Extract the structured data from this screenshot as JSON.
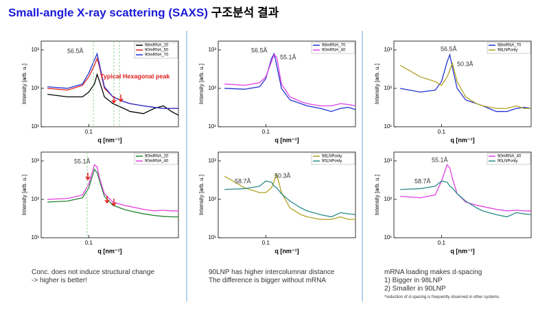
{
  "title": {
    "en": "Small-angle X-ray scattering (SAXS)",
    "ko": "구조분석 결과"
  },
  "chart_data": [
    {
      "type": "line",
      "log_x": true,
      "log_y": true,
      "xlabel": "q [nm⁻¹]",
      "ylabel": "Intensity [arb. u.]",
      "x": [
        0.05,
        0.07,
        0.09,
        0.1,
        0.11,
        0.115,
        0.12,
        0.13,
        0.15,
        0.18,
        0.2,
        0.25,
        0.3,
        0.35,
        0.4,
        0.45
      ],
      "xlim": [
        0.045,
        0.45
      ],
      "ylim": [
        10,
        1700
      ],
      "xticks": [
        0.1
      ],
      "yticks": [
        {
          "value": 10,
          "label": "10¹"
        },
        {
          "value": 100,
          "label": "10²"
        },
        {
          "value": 1000,
          "label": "10³"
        }
      ],
      "annotations": [
        "56.5Å",
        "Typical Hexagonal peak"
      ],
      "series": [
        {
          "name": "98mRNA_20",
          "color": "#000000",
          "values": [
            70,
            60,
            60,
            80,
            130,
            230,
            150,
            60,
            40,
            30,
            25,
            22,
            30,
            35,
            25,
            20
          ]
        },
        {
          "name": "90mRNA_50",
          "color": "#e02020",
          "values": [
            100,
            90,
            120,
            200,
            400,
            600,
            350,
            100,
            60,
            45,
            40,
            35,
            32,
            30,
            30,
            30
          ]
        },
        {
          "name": "90mRNA_70",
          "color": "#2030d0",
          "values": [
            110,
            100,
            130,
            250,
            550,
            800,
            400,
            110,
            60,
            45,
            40,
            35,
            32,
            30,
            30,
            30
          ]
        }
      ]
    },
    {
      "type": "line",
      "log_x": true,
      "log_y": true,
      "xlabel": "q [nm⁻¹]",
      "ylabel": "Intensity [arb. u.]",
      "x": [
        0.05,
        0.07,
        0.09,
        0.1,
        0.11,
        0.115,
        0.12,
        0.13,
        0.15,
        0.18,
        0.2,
        0.25,
        0.3,
        0.35,
        0.4,
        0.45
      ],
      "xlim": [
        0.045,
        0.45
      ],
      "ylim": [
        10,
        1700
      ],
      "xticks": [
        0.1
      ],
      "yticks": [
        {
          "value": 10,
          "label": "10¹"
        },
        {
          "value": 100,
          "label": "10²"
        },
        {
          "value": 1000,
          "label": "10³"
        }
      ],
      "annotations": [
        "56.5Å",
        "55.1Å"
      ],
      "series": [
        {
          "name": "98mRNA_70",
          "color": "#2030d0",
          "values": [
            100,
            95,
            110,
            180,
            600,
            800,
            400,
            100,
            50,
            40,
            35,
            30,
            25,
            30,
            32,
            28
          ]
        },
        {
          "name": "90mRNA_40",
          "color": "#e040e0",
          "values": [
            130,
            120,
            140,
            200,
            500,
            750,
            650,
            130,
            60,
            45,
            40,
            35,
            35,
            40,
            38,
            35
          ]
        }
      ]
    },
    {
      "type": "line",
      "log_x": true,
      "log_y": true,
      "xlabel": "q [nm⁻¹]",
      "ylabel": "Intensity [arb. u.]",
      "x": [
        0.05,
        0.07,
        0.09,
        0.1,
        0.11,
        0.115,
        0.12,
        0.13,
        0.15,
        0.18,
        0.2,
        0.25,
        0.3,
        0.35,
        0.4,
        0.45
      ],
      "xlim": [
        0.045,
        0.45
      ],
      "ylim": [
        10,
        1700
      ],
      "xticks": [
        0.1
      ],
      "yticks": [
        {
          "value": 10,
          "label": "10¹"
        },
        {
          "value": 100,
          "label": "10²"
        },
        {
          "value": 1000,
          "label": "10³"
        }
      ],
      "annotations": [
        "56.5Å",
        "50.3Å"
      ],
      "series": [
        {
          "name": "98mRNA_70",
          "color": "#2030d0",
          "values": [
            100,
            80,
            90,
            150,
            500,
            750,
            350,
            100,
            50,
            40,
            35,
            25,
            25,
            30,
            32,
            30
          ]
        },
        {
          "name": "98LNPonly",
          "color": "#b0a020",
          "values": [
            400,
            200,
            150,
            120,
            200,
            300,
            450,
            150,
            60,
            40,
            35,
            30,
            30,
            35,
            30,
            30
          ]
        }
      ]
    },
    {
      "type": "line",
      "log_x": true,
      "log_y": true,
      "xlabel": "q [nm⁻¹]",
      "ylabel": "Intensity [arb. u.]",
      "x": [
        0.05,
        0.07,
        0.09,
        0.1,
        0.11,
        0.115,
        0.12,
        0.13,
        0.15,
        0.18,
        0.2,
        0.25,
        0.3,
        0.35,
        0.4,
        0.45
      ],
      "xlim": [
        0.045,
        0.45
      ],
      "ylim": [
        10,
        1700
      ],
      "xticks": [
        0.1
      ],
      "yticks": [
        {
          "value": 10,
          "label": "10¹"
        },
        {
          "value": 100,
          "label": "10²"
        },
        {
          "value": 1000,
          "label": "10³"
        }
      ],
      "annotations": [
        "55.1Å"
      ],
      "series": [
        {
          "name": "90mRNA_20",
          "color": "#208030",
          "values": [
            85,
            90,
            110,
            200,
            600,
            500,
            300,
            120,
            70,
            55,
            50,
            42,
            38,
            36,
            35,
            35
          ]
        },
        {
          "name": "90mRNA_40",
          "color": "#e040e0",
          "values": [
            100,
            105,
            130,
            250,
            800,
            700,
            350,
            140,
            85,
            70,
            65,
            55,
            50,
            52,
            50,
            50
          ]
        }
      ]
    },
    {
      "type": "line",
      "log_x": true,
      "log_y": true,
      "xlabel": "q [nm⁻¹]",
      "ylabel": "Intensity [arb. u.]",
      "x": [
        0.05,
        0.07,
        0.09,
        0.1,
        0.11,
        0.115,
        0.12,
        0.13,
        0.15,
        0.18,
        0.2,
        0.25,
        0.3,
        0.35,
        0.4,
        0.45
      ],
      "xlim": [
        0.045,
        0.45
      ],
      "ylim": [
        10,
        1700
      ],
      "xticks": [
        0.1
      ],
      "yticks": [
        {
          "value": 10,
          "label": "10¹"
        },
        {
          "value": 100,
          "label": "10²"
        },
        {
          "value": 1000,
          "label": "10³"
        }
      ],
      "annotations": [
        "58.7Å",
        "50.3Å"
      ],
      "series": [
        {
          "name": "98LNPonly",
          "color": "#b0a020",
          "values": [
            400,
            200,
            150,
            150,
            200,
            300,
            450,
            150,
            60,
            40,
            35,
            30,
            30,
            35,
            30,
            30
          ]
        },
        {
          "name": "90LNPonly",
          "color": "#2a8a8a",
          "values": [
            180,
            190,
            220,
            300,
            280,
            220,
            200,
            140,
            90,
            60,
            50,
            40,
            35,
            45,
            42,
            40
          ]
        }
      ]
    },
    {
      "type": "line",
      "log_x": true,
      "log_y": true,
      "xlabel": "q [nm⁻¹]",
      "ylabel": "Intensity [arb. u.]",
      "x": [
        0.05,
        0.07,
        0.09,
        0.1,
        0.11,
        0.115,
        0.12,
        0.13,
        0.15,
        0.18,
        0.2,
        0.25,
        0.3,
        0.35,
        0.4,
        0.45
      ],
      "xlim": [
        0.045,
        0.45
      ],
      "ylim": [
        10,
        1700
      ],
      "xticks": [
        0.1
      ],
      "yticks": [
        {
          "value": 10,
          "label": "10¹"
        },
        {
          "value": 100,
          "label": "10²"
        },
        {
          "value": 1000,
          "label": "10³"
        }
      ],
      "annotations": [
        "55.1Å",
        "58.7Å"
      ],
      "series": [
        {
          "name": "90mRNA_40",
          "color": "#e040e0",
          "values": [
            120,
            110,
            130,
            300,
            800,
            650,
            350,
            140,
            85,
            70,
            65,
            55,
            50,
            52,
            50,
            50
          ]
        },
        {
          "name": "90LNPonly",
          "color": "#2a8a8a",
          "values": [
            180,
            190,
            220,
            300,
            280,
            220,
            200,
            140,
            90,
            60,
            50,
            40,
            35,
            45,
            42,
            40
          ]
        }
      ]
    }
  ],
  "captions": [
    [
      "Conc. does not induce structural change",
      "-> higher is better!"
    ],
    [
      "90LNP has higher intercolumnar distance",
      "The difference is bigger without mRNA"
    ],
    [
      "mRNA loading makes d-spacing",
      "1)   Bigger in 98LNP",
      "2)   Smaller in 90LNP",
      "*reduction of d-spacing is frequently observed in other systems."
    ]
  ]
}
